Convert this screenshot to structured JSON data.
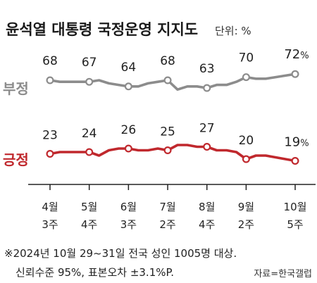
{
  "title": "윤석열 대통령 국정운영 지지도",
  "unit_label": "단위: %",
  "note_line1": "※2024년 10월 29~31일 전국 성인 1005명 대상.",
  "note_line2": "신뢰수준 95%, 표본오차 ±3.1%P.",
  "source": "자료=한국갤럽",
  "colors": {
    "negative": "#8c8c8c",
    "positive": "#c0282d",
    "axis": "#222222"
  },
  "chart_data": {
    "type": "line",
    "title": "윤석열 대통령 국정운영 지지도",
    "unit": "%",
    "x_ticks": [
      {
        "week": 0,
        "line1": "4월",
        "line2": "3주"
      },
      {
        "week": 4,
        "line1": "5월",
        "line2": "4주"
      },
      {
        "week": 8,
        "line1": "6월",
        "line2": "3주"
      },
      {
        "week": 12,
        "line1": "7월",
        "line2": "2주"
      },
      {
        "week": 16,
        "line1": "8월",
        "line2": "4주"
      },
      {
        "week": 20,
        "line1": "9월",
        "line2": "2주"
      },
      {
        "week": 25,
        "line1": "10월",
        "line2": "5주"
      }
    ],
    "series": [
      {
        "name": "부정",
        "color": "#8c8c8c",
        "values": [
          68,
          67,
          67,
          67,
          67,
          68,
          66,
          65,
          64,
          64,
          66,
          67,
          68,
          62,
          64,
          64,
          63,
          65,
          65,
          67,
          70,
          69,
          69,
          70,
          71,
          72
        ],
        "labels": [
          {
            "week": 0,
            "value": 68,
            "text": "68"
          },
          {
            "week": 4,
            "value": 67,
            "text": "67"
          },
          {
            "week": 8,
            "value": 64,
            "text": "64"
          },
          {
            "week": 12,
            "value": 68,
            "text": "68"
          },
          {
            "week": 16,
            "value": 63,
            "text": "63"
          },
          {
            "week": 20,
            "value": 70,
            "text": "70"
          },
          {
            "week": 25,
            "value": 72,
            "text": "72",
            "suffix": "%"
          }
        ]
      },
      {
        "name": "긍정",
        "color": "#c0282d",
        "values": [
          23,
          24,
          24,
          24,
          24,
          22,
          25,
          26,
          26,
          25,
          25,
          26,
          25,
          28,
          28,
          27,
          27,
          25,
          25,
          24,
          20,
          22,
          22,
          21,
          20,
          19
        ],
        "labels": [
          {
            "week": 0,
            "value": 23,
            "text": "23"
          },
          {
            "week": 4,
            "value": 24,
            "text": "24"
          },
          {
            "week": 8,
            "value": 26,
            "text": "26"
          },
          {
            "week": 12,
            "value": 25,
            "text": "25"
          },
          {
            "week": 16,
            "value": 27,
            "text": "27"
          },
          {
            "week": 20,
            "value": 20,
            "text": "20"
          },
          {
            "week": 25,
            "value": 19,
            "text": "19",
            "suffix": "%"
          }
        ]
      }
    ]
  }
}
